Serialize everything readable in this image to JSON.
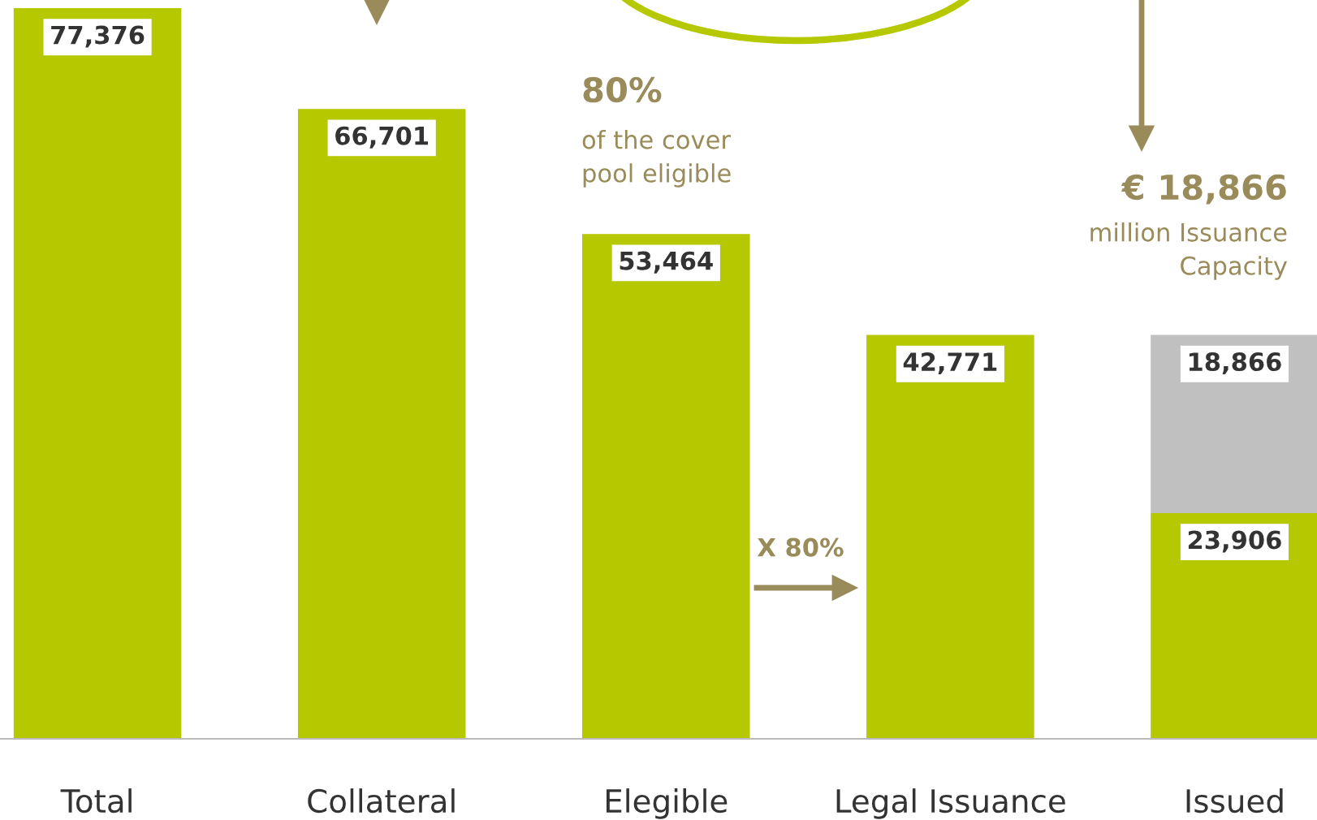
{
  "chart_data": {
    "type": "bar",
    "stacked": true,
    "categories": [
      "Total",
      "Collateral",
      "Elegible",
      "Legal Issuance",
      "Issued"
    ],
    "series": [
      {
        "color": "#b5c800",
        "values": [
          77376,
          66701,
          53464,
          42771,
          23906
        ],
        "value_labels": [
          "77,376",
          "66,701",
          "53,464",
          "42,771",
          "23,906"
        ]
      },
      {
        "color": "#c0c0c0",
        "values": [
          null,
          null,
          null,
          null,
          18866
        ],
        "value_labels": [
          null,
          null,
          null,
          null,
          "18,866"
        ]
      }
    ],
    "grid": false,
    "legend": false,
    "annotations": [
      "80%",
      "of the cover\npool eligible",
      "€ 18,866",
      "million Issuance\nCapacity",
      "X 80%"
    ]
  }
}
